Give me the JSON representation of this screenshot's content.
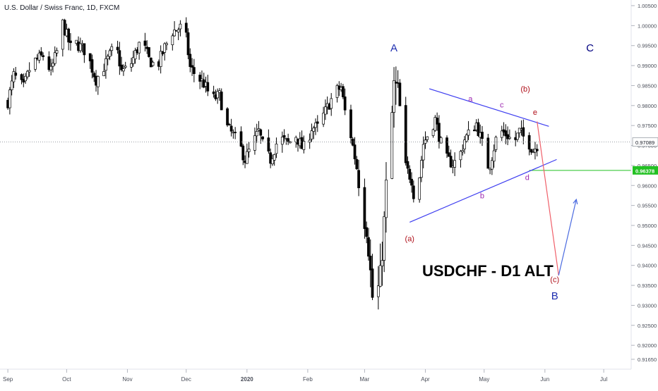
{
  "header": {
    "symbol_title": "U.S. Dollar / Swiss Franc, 1D, FXCM"
  },
  "chart_data": {
    "type": "candlestick",
    "title": "USDCHF - D1 ALT",
    "price_axis": {
      "ticks": [
        "1.00500",
        "1.00000",
        "0.99500",
        "0.99000",
        "0.98500",
        "0.98000",
        "0.97500",
        "0.97000",
        "0.96500",
        "0.96000",
        "0.95500",
        "0.95000",
        "0.94500",
        "0.94000",
        "0.93500",
        "0.93000",
        "0.92500",
        "0.92000",
        "0.91650"
      ],
      "tick_values": [
        1.005,
        1.0,
        0.995,
        0.99,
        0.985,
        0.98,
        0.975,
        0.97,
        0.965,
        0.96,
        0.955,
        0.95,
        0.945,
        0.94,
        0.935,
        0.93,
        0.925,
        0.92,
        0.9165
      ],
      "ylim": [
        0.9165,
        1.005
      ]
    },
    "price_labels": [
      {
        "text": "0.97089",
        "value": 0.97089,
        "style": "last",
        "color": "#131722"
      },
      {
        "text": "0.96378",
        "value": 0.96378,
        "style": "level",
        "color": "#22c122"
      }
    ],
    "time_axis": {
      "labels": [
        "Sep",
        "Oct",
        "Nov",
        "Dec",
        "2020",
        "Feb",
        "Mar",
        "Apr",
        "May",
        "Jun",
        "Jul"
      ],
      "label_days": [
        0,
        30,
        61,
        91,
        122,
        153,
        182,
        213,
        243,
        274,
        304
      ],
      "xlim_days": [
        -4,
        318
      ]
    },
    "candle_anchors": [
      [
        0,
        0.981
      ],
      [
        3,
        0.9875
      ],
      [
        8,
        0.9845
      ],
      [
        12,
        0.9905
      ],
      [
        18,
        0.9925
      ],
      [
        22,
        0.9885
      ],
      [
        25,
        0.9935
      ],
      [
        28,
        1.0005
      ],
      [
        32,
        0.9945
      ],
      [
        35,
        0.9955
      ],
      [
        40,
        0.9935
      ],
      [
        45,
        0.9865
      ],
      [
        50,
        0.9905
      ],
      [
        55,
        0.9955
      ],
      [
        58,
        0.9885
      ],
      [
        62,
        0.9895
      ],
      [
        68,
        0.9965
      ],
      [
        72,
        0.9915
      ],
      [
        76,
        0.9895
      ],
      [
        80,
        0.9945
      ],
      [
        84,
        0.9985
      ],
      [
        88,
        0.9995
      ],
      [
        90,
        1.0005
      ],
      [
        93,
        0.9895
      ],
      [
        96,
        0.9875
      ],
      [
        100,
        0.9855
      ],
      [
        104,
        0.9815
      ],
      [
        108,
        0.9825
      ],
      [
        112,
        0.9745
      ],
      [
        115,
        0.9725
      ],
      [
        118,
        0.9705
      ],
      [
        121,
        0.9665
      ],
      [
        125,
        0.9705
      ],
      [
        128,
        0.9735
      ],
      [
        131,
        0.9685
      ],
      [
        134,
        0.9665
      ],
      [
        137,
        0.9705
      ],
      [
        140,
        0.9715
      ],
      [
        143,
        0.9705
      ],
      [
        147,
        0.9725
      ],
      [
        150,
        0.9695
      ],
      [
        152,
        0.9695
      ],
      [
        155,
        0.9745
      ],
      [
        158,
        0.9745
      ],
      [
        161,
        0.9775
      ],
      [
        164,
        0.9805
      ],
      [
        167,
        0.9835
      ],
      [
        170,
        0.9845
      ],
      [
        172,
        0.9785
      ],
      [
        175,
        0.9725
      ],
      [
        178,
        0.9645
      ],
      [
        181,
        0.9525
      ],
      [
        183,
        0.9485
      ],
      [
        185,
        0.9385
      ],
      [
        187,
        0.9255
      ],
      [
        189,
        0.9345
      ],
      [
        191,
        0.9425
      ],
      [
        193,
        0.9605
      ],
      [
        195,
        0.9705
      ],
      [
        197,
        0.9855
      ],
      [
        199,
        0.9845
      ],
      [
        201,
        0.9745
      ],
      [
        203,
        0.9645
      ],
      [
        206,
        0.9615
      ],
      [
        208,
        0.9545
      ],
      [
        210,
        0.9625
      ],
      [
        212,
        0.9705
      ],
      [
        215,
        0.9735
      ],
      [
        218,
        0.9765
      ],
      [
        221,
        0.9705
      ],
      [
        224,
        0.9665
      ],
      [
        227,
        0.9655
      ],
      [
        230,
        0.9665
      ],
      [
        233,
        0.9715
      ],
      [
        236,
        0.9735
      ],
      [
        239,
        0.9755
      ],
      [
        242,
        0.9705
      ],
      [
        244,
        0.9645
      ],
      [
        246,
        0.9655
      ],
      [
        249,
        0.9715
      ],
      [
        252,
        0.9735
      ],
      [
        255,
        0.9725
      ],
      [
        258,
        0.9705
      ],
      [
        261,
        0.9735
      ],
      [
        264,
        0.9715
      ],
      [
        266,
        0.9705
      ],
      [
        268,
        0.9688
      ],
      [
        270,
        0.9701
      ]
    ],
    "candle_day_range": [
      0,
      270
    ],
    "wave_labels": [
      {
        "text": "A",
        "day": 197,
        "price": 0.9935,
        "color": "#1f2fb0"
      },
      {
        "text": "C",
        "day": 297,
        "price": 0.9935,
        "color": "#000080"
      },
      {
        "text": "B",
        "day": 279,
        "price": 0.9315,
        "color": "#1f2fb0"
      },
      {
        "text": "(a)",
        "day": 205,
        "price": 0.946,
        "color": "#b0111b"
      },
      {
        "text": "(b)",
        "day": 264,
        "price": 0.9835,
        "color": "#b0111b"
      },
      {
        "text": "(c)",
        "day": 279,
        "price": 0.9358,
        "color": "#b0111b"
      },
      {
        "text": "a",
        "day": 236,
        "price": 0.981,
        "color": "#9c27b0"
      },
      {
        "text": "b",
        "day": 242,
        "price": 0.9568,
        "color": "#9c27b0"
      },
      {
        "text": "c",
        "day": 252,
        "price": 0.9795,
        "color": "#9c27b0"
      },
      {
        "text": "d",
        "day": 265,
        "price": 0.9614,
        "color": "#9c27b0"
      },
      {
        "text": "e",
        "day": 269,
        "price": 0.9777,
        "color": "#b0111b"
      }
    ],
    "trendlines": [
      {
        "name": "upper-triangle-line",
        "color": "#3d3df0",
        "from": [
          215,
          0.9842
        ],
        "to": [
          276,
          0.9748
        ]
      },
      {
        "name": "lower-triangle-line",
        "color": "#3d3df0",
        "from": [
          205,
          0.9508
        ],
        "to": [
          280,
          0.9665
        ]
      },
      {
        "name": "projection-down-line",
        "color": "#f0606a",
        "from": [
          270,
          0.976
        ],
        "to": [
          281,
          0.9375
        ]
      },
      {
        "name": "projection-up-line",
        "color": "#4a6ae0",
        "from": [
          281,
          0.9375
        ],
        "to": [
          290,
          0.9565
        ]
      }
    ],
    "horizontal_levels": [
      {
        "name": "last-price-line",
        "price": 0.97089,
        "color": "#9aa0a6",
        "style": "dotted"
      },
      {
        "name": "support-level-line",
        "price": 0.96378,
        "color": "#22c122",
        "from_day": 266,
        "style": "solid"
      }
    ],
    "grid": false,
    "colors": {
      "bull": "#ffffff",
      "bear": "#000000",
      "wick": "#000000"
    }
  }
}
